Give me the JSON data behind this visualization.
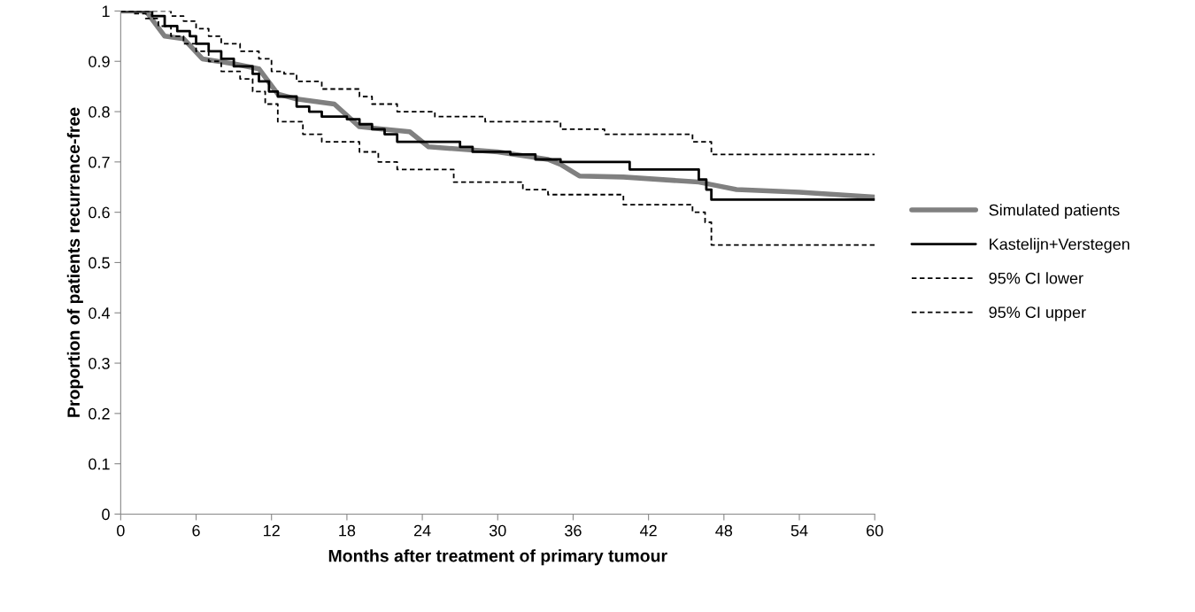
{
  "chart_data": {
    "type": "line",
    "xlabel": "Months after treatment of primary tumour",
    "ylabel": "Proportion of patients recurrence-free",
    "xlim": [
      0,
      60
    ],
    "xticks": [
      0,
      6,
      12,
      18,
      24,
      30,
      36,
      42,
      48,
      54,
      60
    ],
    "ylim": [
      0,
      1
    ],
    "yticks": [
      0,
      0.1,
      0.2,
      0.3,
      0.4,
      0.5,
      0.6,
      0.7,
      0.8,
      0.9,
      1
    ],
    "grid": false,
    "legend": "right",
    "series": [
      {
        "name": "Simulated patients",
        "color": "#808080",
        "line_style": "solid",
        "x": [
          0,
          2,
          3.5,
          5,
          6.5,
          9,
          11,
          12.5,
          14,
          17,
          19,
          21,
          23,
          24.5,
          30,
          34,
          35,
          36.5,
          40,
          46,
          47,
          49,
          54,
          60
        ],
        "values": [
          1,
          1,
          0.95,
          0.945,
          0.905,
          0.895,
          0.885,
          0.835,
          0.825,
          0.815,
          0.77,
          0.765,
          0.76,
          0.73,
          0.72,
          0.705,
          0.695,
          0.672,
          0.67,
          0.66,
          0.655,
          0.645,
          0.64,
          0.63
        ]
      },
      {
        "name": "Kastelijn+Verstegen",
        "type": "step",
        "color": "#000000",
        "line_style": "solid",
        "x": [
          0,
          2,
          2.5,
          3.5,
          4.5,
          5.5,
          6,
          7,
          8,
          9,
          10.5,
          11,
          11.8,
          12.5,
          14,
          15,
          16,
          18,
          19,
          20,
          21,
          22,
          27,
          28,
          31,
          33,
          35,
          40.5,
          46,
          46.6,
          47,
          60
        ],
        "values": [
          1,
          1,
          0.99,
          0.97,
          0.96,
          0.95,
          0.935,
          0.92,
          0.905,
          0.89,
          0.875,
          0.86,
          0.84,
          0.83,
          0.81,
          0.8,
          0.79,
          0.785,
          0.775,
          0.765,
          0.755,
          0.74,
          0.73,
          0.72,
          0.715,
          0.705,
          0.7,
          0.685,
          0.665,
          0.645,
          0.625,
          0.625
        ]
      },
      {
        "name": "95% CI lower",
        "type": "step",
        "color": "#000000",
        "line_style": "dashed",
        "x": [
          0,
          1,
          2,
          3,
          4,
          5,
          6,
          7,
          8,
          9.5,
          10.5,
          11.5,
          12.5,
          14.5,
          16,
          19,
          20.5,
          22,
          26.5,
          32,
          34,
          40,
          45.5,
          46.5,
          47,
          60
        ],
        "values": [
          1,
          0.995,
          0.985,
          0.97,
          0.95,
          0.935,
          0.92,
          0.9,
          0.88,
          0.865,
          0.84,
          0.815,
          0.78,
          0.755,
          0.74,
          0.72,
          0.7,
          0.685,
          0.66,
          0.645,
          0.635,
          0.615,
          0.6,
          0.58,
          0.535,
          0.535
        ]
      },
      {
        "name": "95% CI upper",
        "type": "step",
        "color": "#000000",
        "line_style": "dashed",
        "x": [
          0,
          3,
          4,
          5,
          6,
          7,
          8,
          9.5,
          11,
          12,
          13,
          14,
          16,
          19,
          20,
          22,
          25,
          29,
          35,
          38.5,
          45.5,
          47,
          60
        ],
        "values": [
          1,
          1,
          0.99,
          0.98,
          0.965,
          0.95,
          0.935,
          0.92,
          0.905,
          0.88,
          0.875,
          0.86,
          0.845,
          0.83,
          0.815,
          0.8,
          0.79,
          0.78,
          0.765,
          0.755,
          0.74,
          0.715,
          0.715
        ]
      }
    ]
  }
}
